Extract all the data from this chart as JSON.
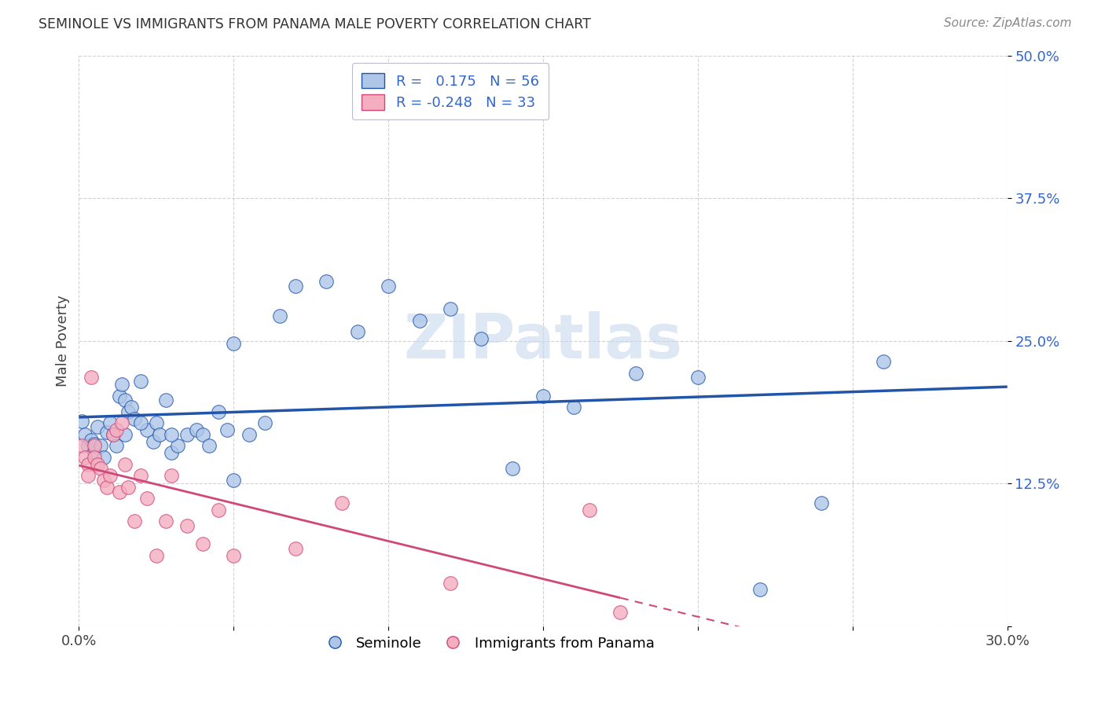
{
  "title": "SEMINOLE VS IMMIGRANTS FROM PANAMA MALE POVERTY CORRELATION CHART",
  "source": "Source: ZipAtlas.com",
  "ylabel": "Male Poverty",
  "x_min": 0.0,
  "x_max": 0.3,
  "y_min": 0.0,
  "y_max": 0.5,
  "x_ticks": [
    0.0,
    0.05,
    0.1,
    0.15,
    0.2,
    0.25,
    0.3
  ],
  "y_ticks": [
    0.0,
    0.125,
    0.25,
    0.375,
    0.5
  ],
  "y_tick_labels": [
    "",
    "12.5%",
    "25.0%",
    "37.5%",
    "50.0%"
  ],
  "seminole_R": 0.175,
  "seminole_N": 56,
  "panama_R": -0.248,
  "panama_N": 33,
  "seminole_color": "#aec6e8",
  "seminole_line_color": "#2255aa",
  "panama_color": "#f4aec0",
  "panama_line_color": "#d04878",
  "watermark": "ZIPatlas",
  "legend_box_color": "#e8eef8",
  "seminole_x": [
    0.001,
    0.002,
    0.003,
    0.004,
    0.005,
    0.005,
    0.006,
    0.007,
    0.008,
    0.009,
    0.01,
    0.011,
    0.012,
    0.013,
    0.014,
    0.015,
    0.016,
    0.017,
    0.018,
    0.02,
    0.022,
    0.024,
    0.025,
    0.026,
    0.028,
    0.03,
    0.032,
    0.035,
    0.038,
    0.04,
    0.042,
    0.045,
    0.048,
    0.05,
    0.055,
    0.06,
    0.065,
    0.07,
    0.08,
    0.09,
    0.1,
    0.11,
    0.12,
    0.13,
    0.14,
    0.15,
    0.16,
    0.18,
    0.2,
    0.22,
    0.24,
    0.26,
    0.015,
    0.02,
    0.03,
    0.05
  ],
  "seminole_y": [
    0.18,
    0.168,
    0.158,
    0.163,
    0.152,
    0.16,
    0.175,
    0.158,
    0.148,
    0.17,
    0.178,
    0.168,
    0.158,
    0.202,
    0.212,
    0.198,
    0.188,
    0.192,
    0.182,
    0.215,
    0.172,
    0.162,
    0.178,
    0.168,
    0.198,
    0.152,
    0.158,
    0.168,
    0.172,
    0.168,
    0.158,
    0.188,
    0.172,
    0.128,
    0.168,
    0.178,
    0.272,
    0.298,
    0.302,
    0.258,
    0.298,
    0.268,
    0.278,
    0.252,
    0.138,
    0.202,
    0.192,
    0.222,
    0.218,
    0.032,
    0.108,
    0.232,
    0.168,
    0.178,
    0.168,
    0.248
  ],
  "panama_x": [
    0.001,
    0.002,
    0.003,
    0.003,
    0.004,
    0.005,
    0.005,
    0.006,
    0.007,
    0.008,
    0.009,
    0.01,
    0.011,
    0.012,
    0.013,
    0.014,
    0.015,
    0.016,
    0.018,
    0.02,
    0.022,
    0.025,
    0.028,
    0.03,
    0.035,
    0.04,
    0.045,
    0.05,
    0.07,
    0.085,
    0.12,
    0.165,
    0.175
  ],
  "panama_y": [
    0.158,
    0.148,
    0.142,
    0.132,
    0.218,
    0.158,
    0.148,
    0.142,
    0.138,
    0.128,
    0.122,
    0.132,
    0.168,
    0.172,
    0.118,
    0.178,
    0.142,
    0.122,
    0.092,
    0.132,
    0.112,
    0.062,
    0.092,
    0.132,
    0.088,
    0.072,
    0.102,
    0.062,
    0.068,
    0.108,
    0.038,
    0.102,
    0.012
  ]
}
